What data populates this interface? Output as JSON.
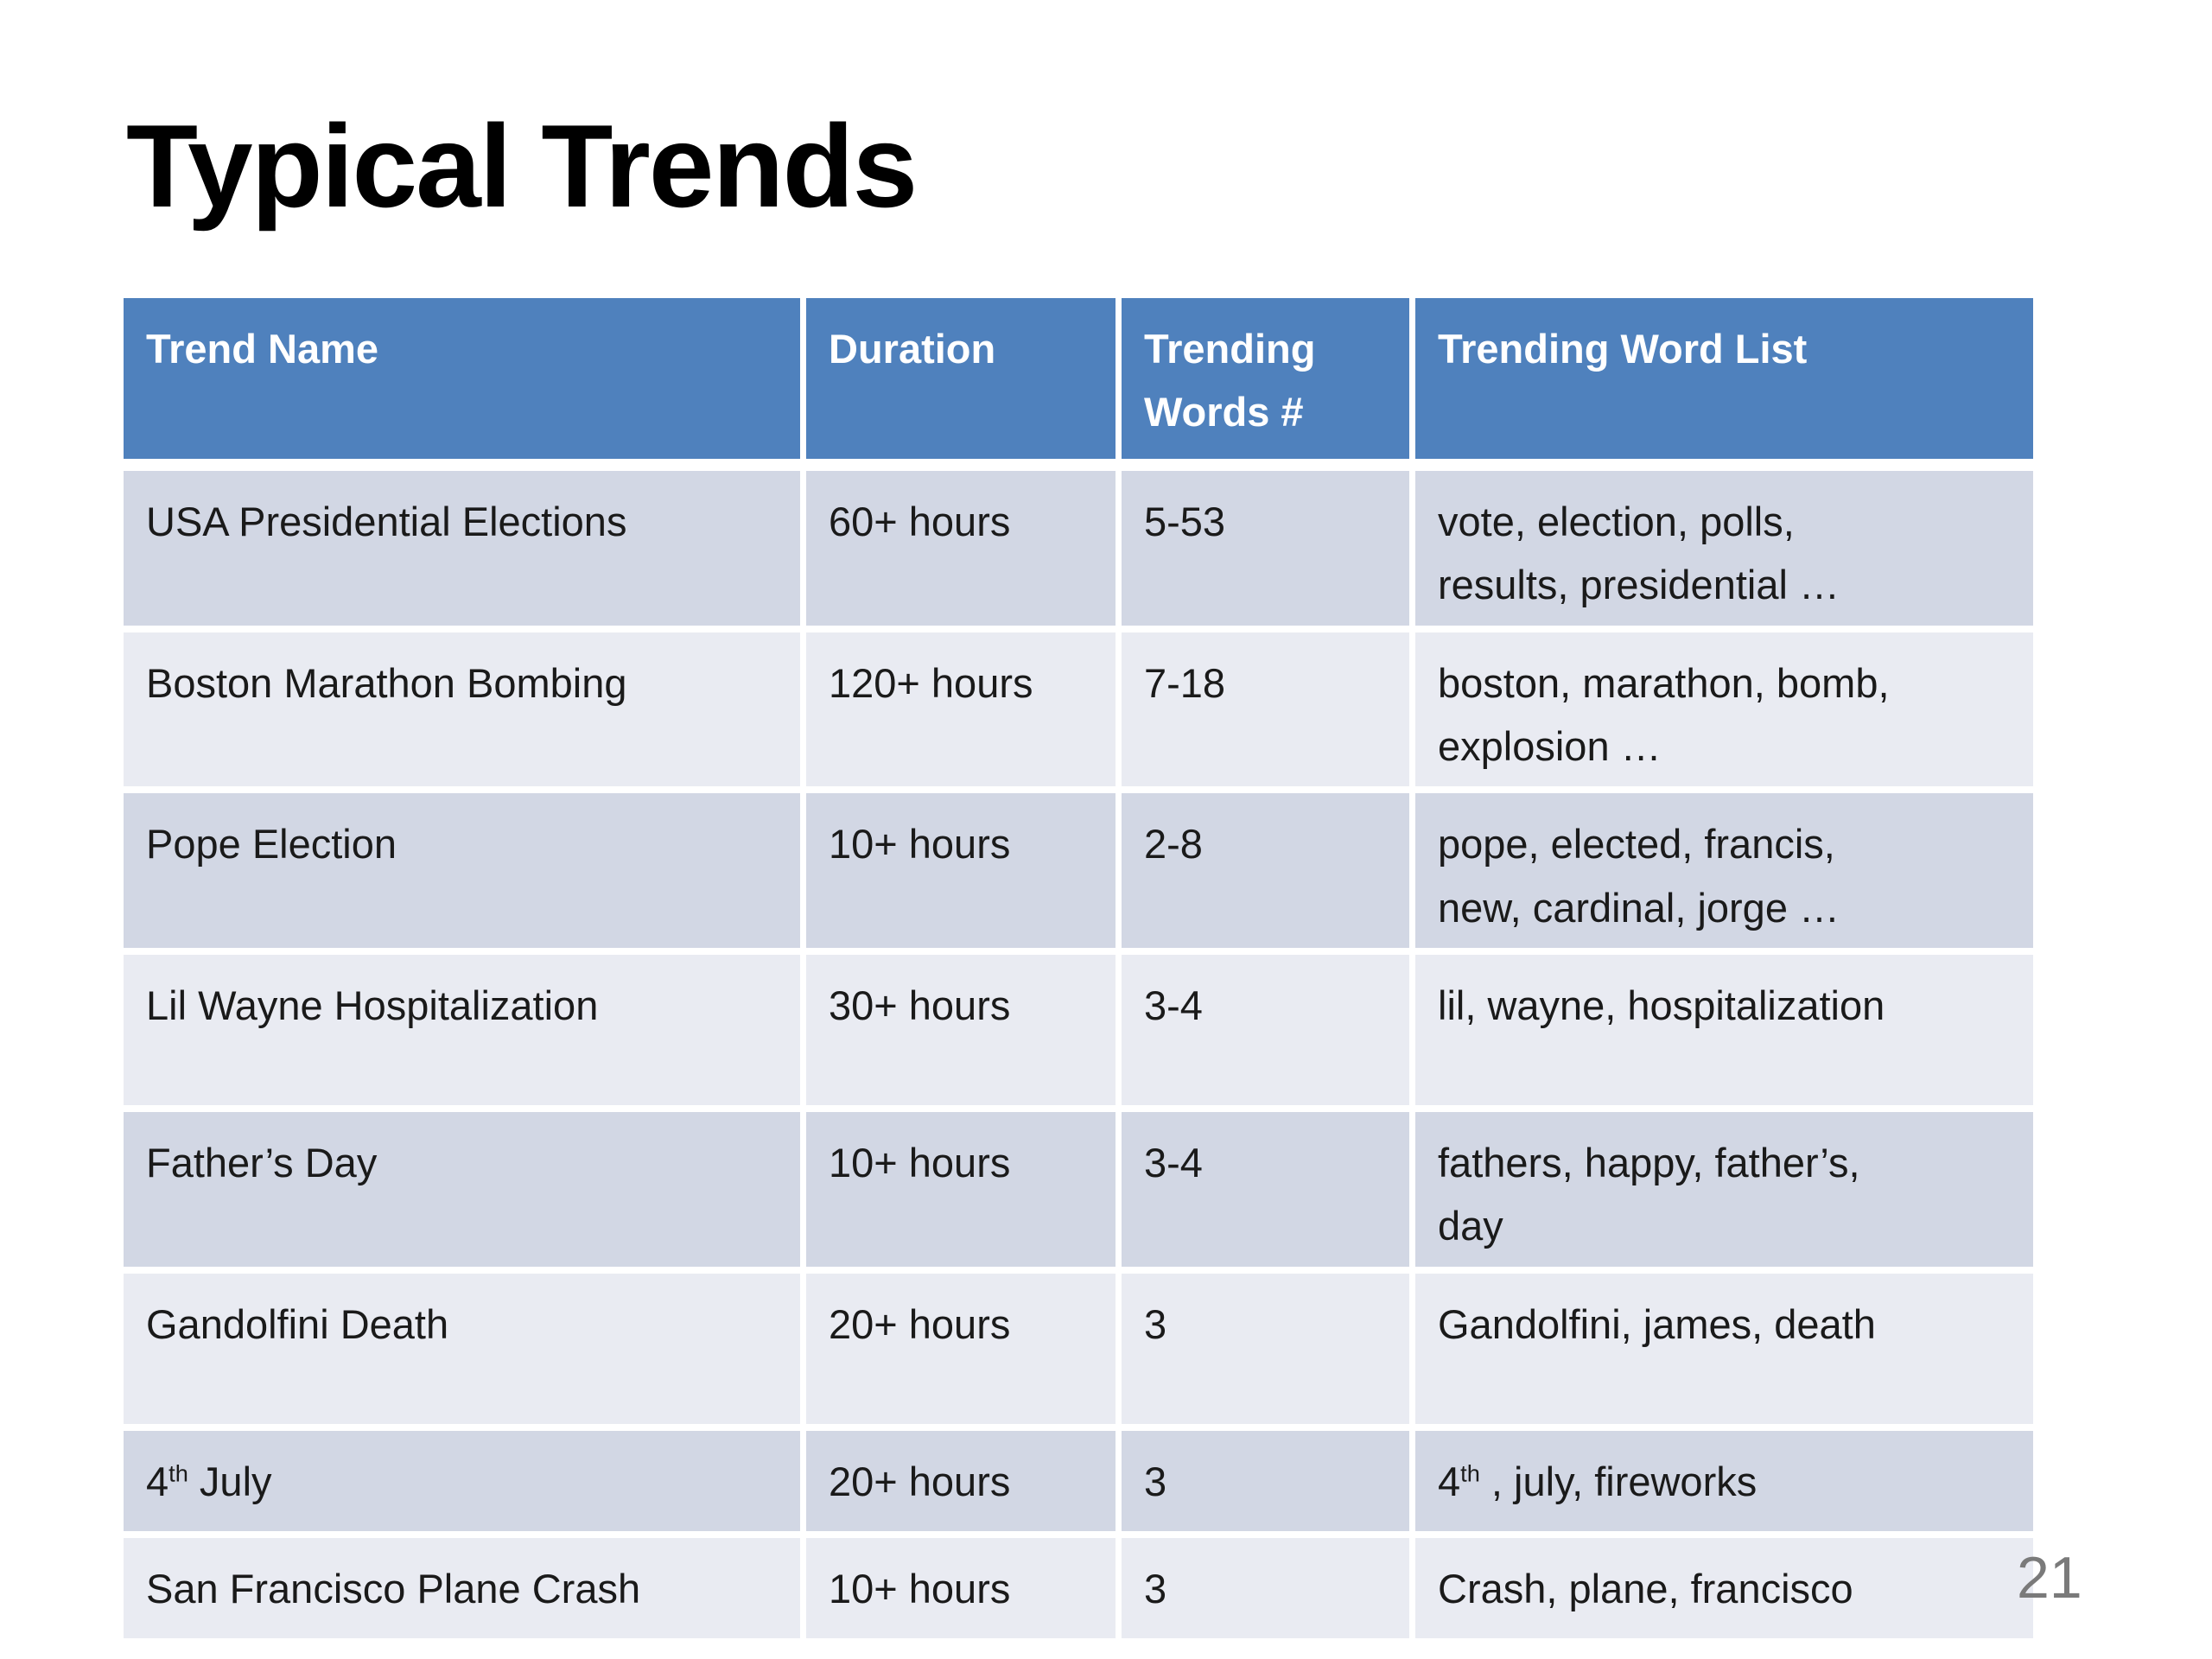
{
  "slide": {
    "title": "Typical Trends",
    "page_number": "21"
  },
  "table": {
    "columns": [
      {
        "label": "Trend Name"
      },
      {
        "label": "Duration"
      },
      {
        "label": "Trending\nWords #"
      },
      {
        "label": "Trending Word List"
      }
    ],
    "rows": [
      {
        "name": "USA Presidential Elections",
        "duration": "60+ hours",
        "trending_words_count": "5-53",
        "word_list": "vote, election, polls,\nresults, presidential …"
      },
      {
        "name": "Boston Marathon Bombing",
        "duration": "120+ hours",
        "trending_words_count": "7-18",
        "word_list": "boston, marathon, bomb,\nexplosion …"
      },
      {
        "name": "Pope Election",
        "duration": "10+ hours",
        "trending_words_count": "2-8",
        "word_list": "pope, elected, francis,\nnew, cardinal, jorge …"
      },
      {
        "name": "Lil Wayne Hospitalization",
        "duration": "30+ hours",
        "trending_words_count": "3-4",
        "word_list": "lil, wayne, hospitalization"
      },
      {
        "name": "Father’s Day",
        "duration": "10+ hours",
        "trending_words_count": "3-4",
        "word_list": "fathers, happy, father’s,\nday"
      },
      {
        "name": "Gandolfini Death",
        "duration": "20+ hours",
        "trending_words_count": "3",
        "word_list": "Gandolfini, james, death"
      },
      {
        "name": "4^{th} July",
        "duration": "20+ hours",
        "trending_words_count": "3",
        "word_list": "4^{th} , july, fireworks"
      },
      {
        "name": "San Francisco Plane Crash",
        "duration": "10+ hours",
        "trending_words_count": "3",
        "word_list": "Crash, plane, francisco"
      }
    ],
    "colors": {
      "header_bg": "#4f81bd",
      "header_text": "#ffffff",
      "row_odd_bg": "#d2d7e4",
      "row_even_bg": "#e9ebf2",
      "body_text": "#1a1a1a",
      "page_number_color": "#7a7a7a"
    }
  }
}
